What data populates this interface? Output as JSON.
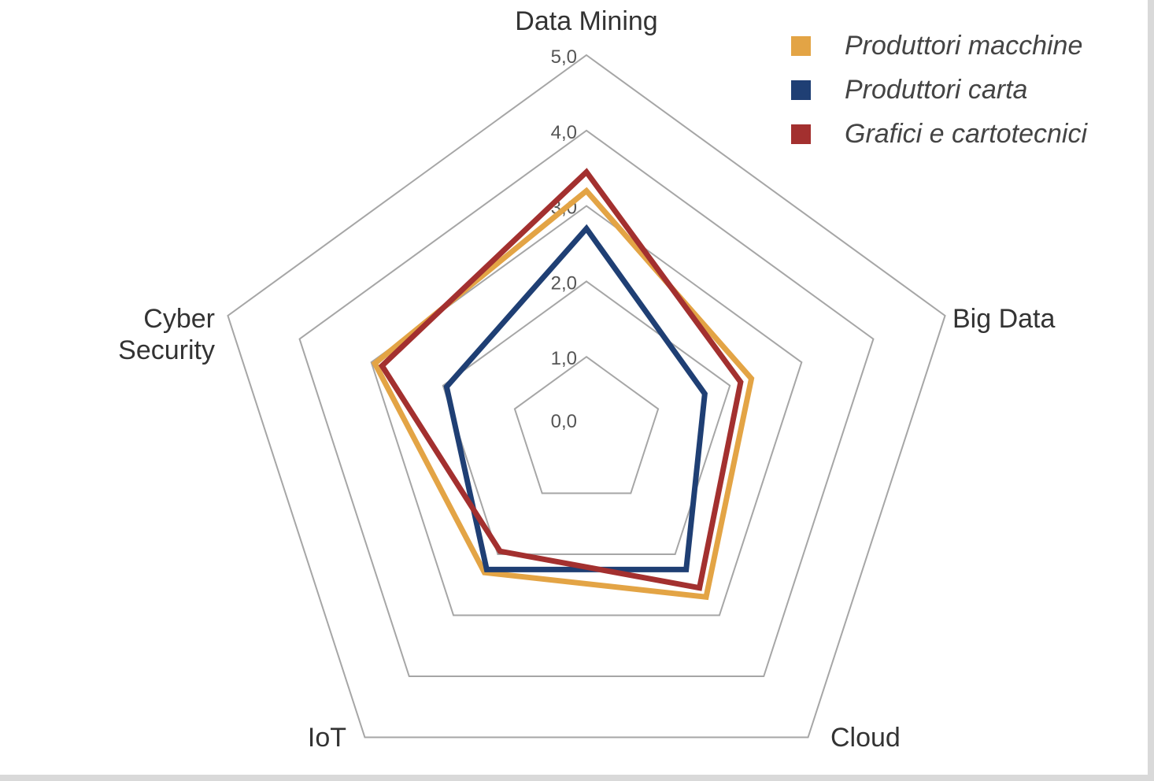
{
  "chart_data": {
    "type": "radar",
    "title": "",
    "axes": [
      "Data Mining",
      "Big Data",
      "Cloud",
      "IoT",
      "Cyber\nSecurity"
    ],
    "axis_label_lines": [
      [
        "Data Mining"
      ],
      [
        "Big Data"
      ],
      [
        "Cloud"
      ],
      [
        "IoT"
      ],
      [
        "Cyber",
        "Security"
      ]
    ],
    "range": [
      0,
      5
    ],
    "ticks": [
      0,
      1,
      2,
      3,
      4,
      5
    ],
    "tick_labels": [
      "0,0",
      "1,0",
      "2,0",
      "3,0",
      "4,0",
      "5,0"
    ],
    "grid": true,
    "legend_position": "top-right",
    "series": [
      {
        "name": "Produttori macchine",
        "color": "#E3A445",
        "values": [
          3.2,
          2.3,
          2.7,
          2.3,
          2.95
        ]
      },
      {
        "name": "Produttori carta",
        "color": "#1F3F74",
        "values": [
          2.7,
          1.65,
          2.25,
          2.25,
          1.95
        ]
      },
      {
        "name": "Grafici e cartotecnici",
        "color": "#A3302F",
        "values": [
          3.45,
          2.15,
          2.55,
          1.95,
          2.85
        ]
      }
    ]
  }
}
